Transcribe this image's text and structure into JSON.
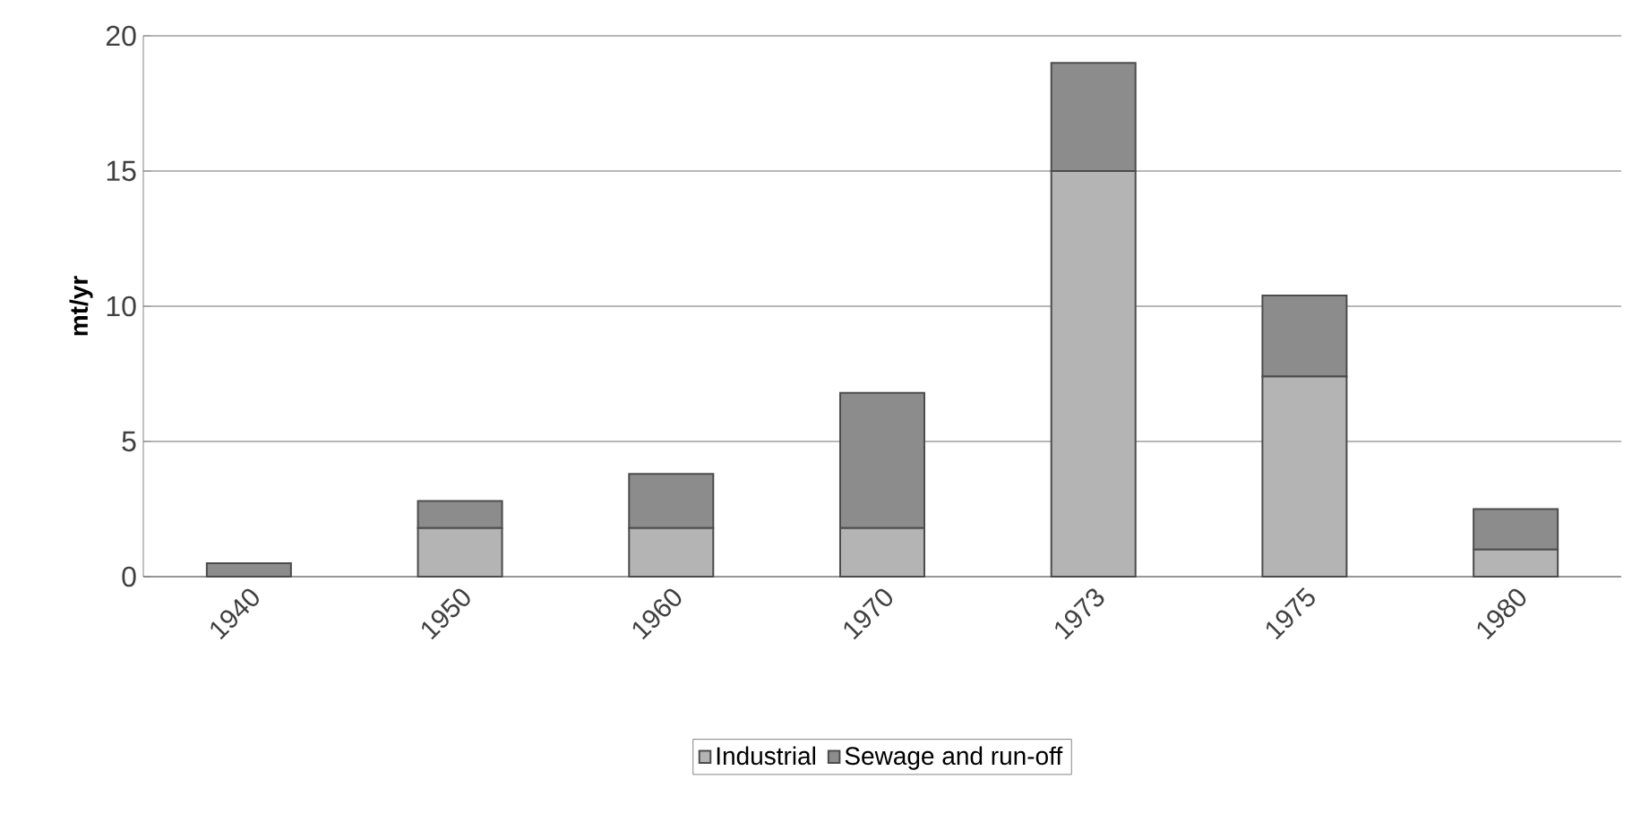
{
  "chart_data": {
    "type": "bar",
    "ylabel": "mt/yr",
    "categories": [
      "1940",
      "1950",
      "1960",
      "1970",
      "1973",
      "1975",
      "1980"
    ],
    "series": [
      {
        "name": "Industrial",
        "color": "#b4b4b4",
        "values": [
          0,
          1.8,
          1.8,
          1.8,
          15,
          7.4,
          1.0
        ]
      },
      {
        "name": "Sewage and run-off",
        "color": "#8c8c8c",
        "values": [
          0.5,
          1.0,
          2.0,
          5.0,
          4.0,
          3.0,
          1.5
        ]
      }
    ],
    "stacked": true,
    "ylim": [
      0,
      20
    ],
    "yticks": [
      0,
      5,
      10,
      15,
      20
    ],
    "grid": "y",
    "legend": "bottom"
  }
}
